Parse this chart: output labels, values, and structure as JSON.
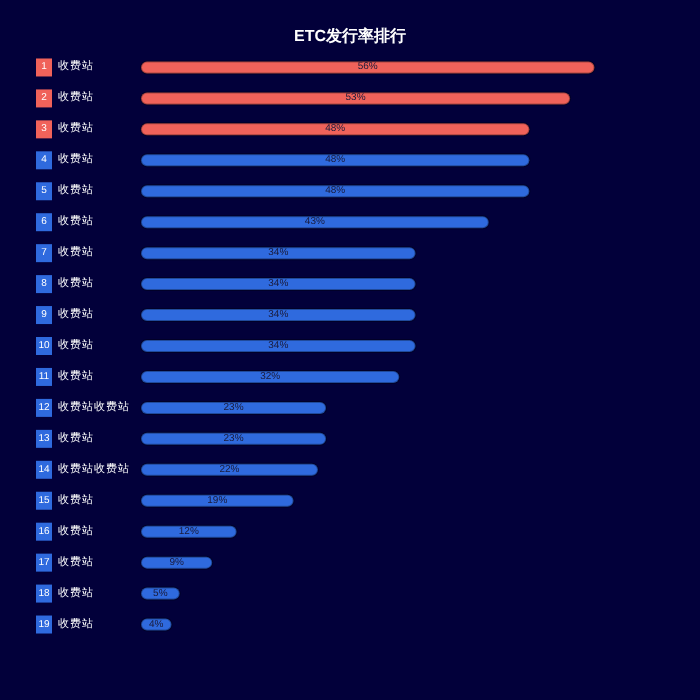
{
  "chart_data": {
    "type": "bar",
    "orientation": "horizontal",
    "title": "ETC发行率排行",
    "categories": [
      "收费站",
      "收费站",
      "收费站",
      "收费站",
      "收费站",
      "收费站",
      "收费站",
      "收费站",
      "收费站",
      "收费站",
      "收费站",
      "收费站收费站",
      "收费站",
      "收费站收费站",
      "收费站",
      "收费站",
      "收费站",
      "收费站",
      "收费站"
    ],
    "annotations": [
      "1",
      "2",
      "3",
      "4",
      "5",
      "6",
      "7",
      "8",
      "9",
      "10",
      "11",
      "12",
      "13",
      "14",
      "15",
      "16",
      "17",
      "18",
      "19"
    ],
    "values": [
      56,
      53,
      48,
      48,
      48,
      43,
      34,
      34,
      34,
      34,
      32,
      23,
      23,
      22,
      19,
      12,
      9,
      5,
      4
    ],
    "value_labels": [
      "56%",
      "53%",
      "48%",
      "48%",
      "48%",
      "43%",
      "34%",
      "34%",
      "34%",
      "34%",
      "32%",
      "23%",
      "23%",
      "22%",
      "19%",
      "12%",
      "9%",
      "5%",
      "4%"
    ],
    "colors": [
      "#f0625a",
      "#f0625a",
      "#f0625a",
      "#2f6ade",
      "#2f6ade",
      "#2f6ade",
      "#2f6ade",
      "#2f6ade",
      "#2f6ade",
      "#2f6ade",
      "#2f6ade",
      "#2f6ade",
      "#2f6ade",
      "#2f6ade",
      "#2f6ade",
      "#2f6ade",
      "#2f6ade",
      "#2f6ade",
      "#2f6ade"
    ]
  }
}
